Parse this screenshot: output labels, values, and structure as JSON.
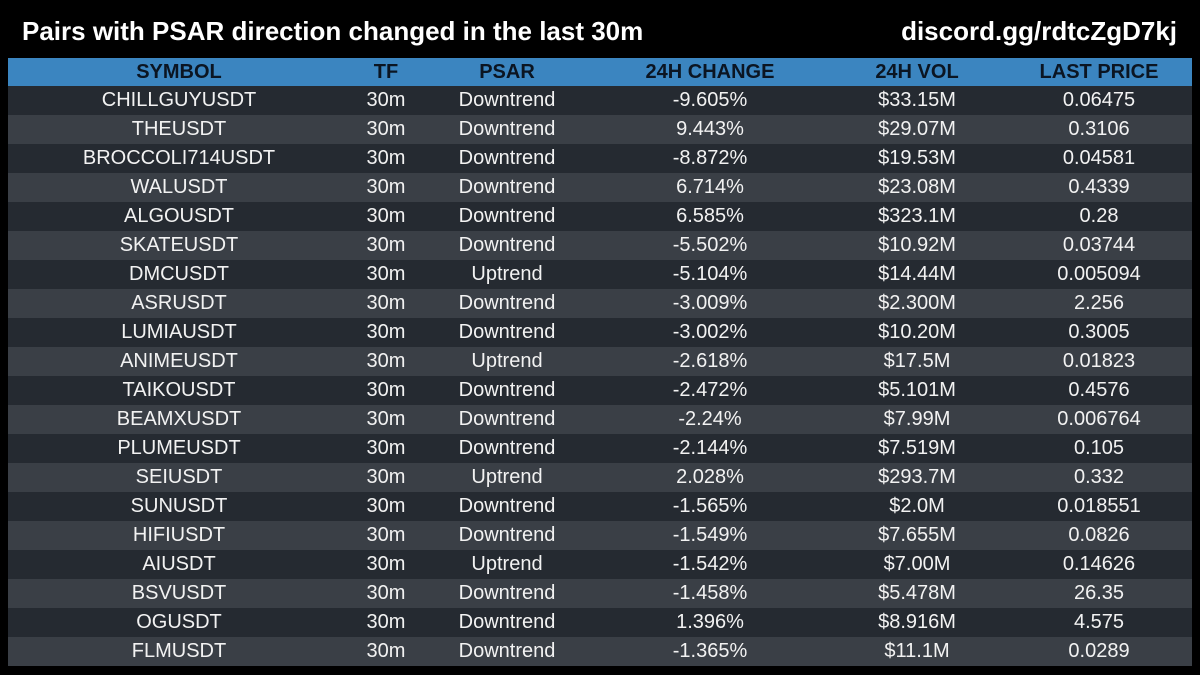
{
  "header": {
    "title": "Pairs with PSAR direction changed in the last 30m",
    "link": "discord.gg/rdtcZgD7kj"
  },
  "colors": {
    "background": "#000000",
    "header_row": "#3b85c0",
    "row_dark": "#252a31",
    "row_light": "#3a3f46"
  },
  "table": {
    "columns": [
      "SYMBOL",
      "TF",
      "PSAR",
      "24H CHANGE",
      "24H VOL",
      "LAST PRICE"
    ],
    "rows": [
      [
        "CHILLGUYUSDT",
        "30m",
        "Downtrend",
        "-9.605%",
        "$33.15M",
        "0.06475"
      ],
      [
        "THEUSDT",
        "30m",
        "Downtrend",
        "9.443%",
        "$29.07M",
        "0.3106"
      ],
      [
        "BROCCOLI714USDT",
        "30m",
        "Downtrend",
        "-8.872%",
        "$19.53M",
        "0.04581"
      ],
      [
        "WALUSDT",
        "30m",
        "Downtrend",
        "6.714%",
        "$23.08M",
        "0.4339"
      ],
      [
        "ALGOUSDT",
        "30m",
        "Downtrend",
        "6.585%",
        "$323.1M",
        "0.28"
      ],
      [
        "SKATEUSDT",
        "30m",
        "Downtrend",
        "-5.502%",
        "$10.92M",
        "0.03744"
      ],
      [
        "DMCUSDT",
        "30m",
        "Uptrend",
        "-5.104%",
        "$14.44M",
        "0.005094"
      ],
      [
        "ASRUSDT",
        "30m",
        "Downtrend",
        "-3.009%",
        "$2.300M",
        "2.256"
      ],
      [
        "LUMIAUSDT",
        "30m",
        "Downtrend",
        "-3.002%",
        "$10.20M",
        "0.3005"
      ],
      [
        "ANIMEUSDT",
        "30m",
        "Uptrend",
        "-2.618%",
        "$17.5M",
        "0.01823"
      ],
      [
        "TAIKOUSDT",
        "30m",
        "Downtrend",
        "-2.472%",
        "$5.101M",
        "0.4576"
      ],
      [
        "BEAMXUSDT",
        "30m",
        "Downtrend",
        "-2.24%",
        "$7.99M",
        "0.006764"
      ],
      [
        "PLUMEUSDT",
        "30m",
        "Downtrend",
        "-2.144%",
        "$7.519M",
        "0.105"
      ],
      [
        "SEIUSDT",
        "30m",
        "Uptrend",
        "2.028%",
        "$293.7M",
        "0.332"
      ],
      [
        "SUNUSDT",
        "30m",
        "Downtrend",
        "-1.565%",
        "$2.0M",
        "0.018551"
      ],
      [
        "HIFIUSDT",
        "30m",
        "Downtrend",
        "-1.549%",
        "$7.655M",
        "0.0826"
      ],
      [
        "AIUSDT",
        "30m",
        "Uptrend",
        "-1.542%",
        "$7.00M",
        "0.14626"
      ],
      [
        "BSVUSDT",
        "30m",
        "Downtrend",
        "-1.458%",
        "$5.478M",
        "26.35"
      ],
      [
        "OGUSDT",
        "30m",
        "Downtrend",
        "1.396%",
        "$8.916M",
        "4.575"
      ],
      [
        "FLMUSDT",
        "30m",
        "Downtrend",
        "-1.365%",
        "$11.1M",
        "0.0289"
      ]
    ]
  }
}
